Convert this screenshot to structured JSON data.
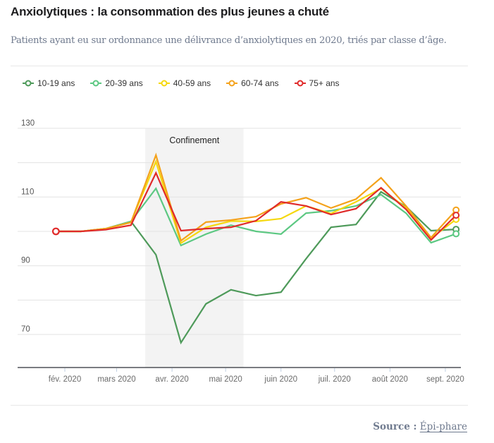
{
  "header": {
    "title": "Anxiolytiques : la consommation des plus jeunes a chuté",
    "subtitle": "Patients ayant eu sur ordonnance une délivrance d’anxiolytiques en 2020, triés par classe d’âge."
  },
  "legend": [
    {
      "label": "10-19 ans",
      "color": "#4e9a5a"
    },
    {
      "label": "20-39 ans",
      "color": "#5cc882"
    },
    {
      "label": "40-59 ans",
      "color": "#f5d80f"
    },
    {
      "label": "60-74 ans",
      "color": "#f4a21b"
    },
    {
      "label": "75+ ans",
      "color": "#e02a2a"
    }
  ],
  "source": {
    "prefix": "Source :",
    "link": "Épi-phare"
  },
  "chart_data": {
    "type": "line",
    "title": "Anxiolytiques : la consommation des plus jeunes a chuté",
    "subtitle": "Patients ayant eu sur ordonnance une délivrance d’anxiolytiques en 2020, triés par classe d’âge.",
    "xlabel": "",
    "ylabel": "",
    "x_unit": "day of year 2020",
    "x": [
      26,
      40,
      54,
      68,
      82,
      96,
      110,
      124,
      138,
      152,
      166,
      180,
      194,
      208,
      222,
      236,
      250
    ],
    "xlim": [
      -1,
      256
    ],
    "ylim": [
      60,
      132
    ],
    "y_ticks": [
      130,
      110,
      90,
      70
    ],
    "y_gridlines": [
      130,
      120,
      110,
      100,
      90,
      80,
      70
    ],
    "x_ticks": [
      {
        "label": "fév. 2020",
        "day": 31
      },
      {
        "label": "mars 2020",
        "day": 60
      },
      {
        "label": "avr. 2020",
        "day": 91
      },
      {
        "label": "mai 2020",
        "day": 121
      },
      {
        "label": "juin 2020",
        "day": 152
      },
      {
        "label": "juil. 2020",
        "day": 182
      },
      {
        "label": "août 2020",
        "day": 213
      },
      {
        "label": "sept. 2020",
        "day": 244
      }
    ],
    "annotation": {
      "label": "Confinement",
      "start_day": 76,
      "end_day": 131
    },
    "grid": true,
    "legend_position": "top-left",
    "series": [
      {
        "name": "10-19 ans",
        "color": "#4e9a5a",
        "values": [
          100,
          100,
          100.8,
          102.9,
          93.2,
          67.6,
          78.9,
          83.0,
          81.3,
          82.3,
          92.0,
          101.2,
          102.0,
          111.5,
          107.2,
          100.2,
          100.6
        ]
      },
      {
        "name": "20-39 ans",
        "color": "#5cc882",
        "values": [
          100,
          100,
          100.8,
          102.9,
          112.5,
          95.9,
          99.2,
          101.8,
          100.0,
          99.2,
          105.3,
          106.0,
          107.4,
          110.7,
          105.3,
          96.7,
          99.3
        ]
      },
      {
        "name": "40-59 ans",
        "color": "#f5d80f",
        "values": [
          100,
          100,
          100.8,
          102.6,
          120.3,
          96.6,
          101.2,
          103.0,
          102.9,
          103.7,
          107.4,
          105.2,
          108.6,
          112.5,
          106.8,
          98.0,
          103.5
        ]
      },
      {
        "name": "60-74 ans",
        "color": "#f4a21b",
        "values": [
          100,
          100,
          100.8,
          102.6,
          122.2,
          97.3,
          102.7,
          103.3,
          104.3,
          108.0,
          109.8,
          106.8,
          109.4,
          115.6,
          107.4,
          98.2,
          106.2
        ]
      },
      {
        "name": "75+ ans",
        "color": "#e02a2a",
        "values": [
          100,
          100,
          100.5,
          101.8,
          117.0,
          100.2,
          100.8,
          101.2,
          103.1,
          108.6,
          107.4,
          104.9,
          106.6,
          112.7,
          106.4,
          97.5,
          104.7
        ]
      }
    ]
  }
}
